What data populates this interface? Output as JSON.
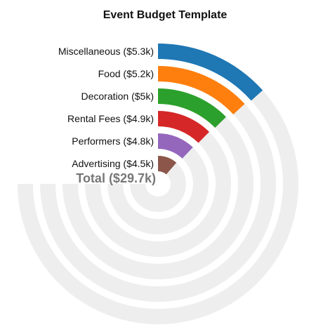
{
  "chart_data": {
    "type": "radial-bar",
    "title": "Event Budget Template",
    "categories": [
      "Miscellaneous",
      "Food",
      "Decoration",
      "Rental Fees",
      "Performers",
      "Advertising"
    ],
    "values": [
      5.3,
      5.2,
      5.0,
      4.9,
      4.8,
      4.5
    ],
    "labels": [
      "Miscellaneous ($5.3k)",
      "Food ($5.2k)",
      "Decoration ($5k)",
      "Rental Fees ($4.9k)",
      "Performers ($4.8k)",
      "Advertising ($4.5k)"
    ],
    "colors": [
      "#1f77b4",
      "#ff7f0e",
      "#2ca02c",
      "#d62728",
      "#9467bd",
      "#8c564b"
    ],
    "track_color": "#eeeeee",
    "max_value": 29.7,
    "total": 29.7,
    "total_label": "Total ($29.7k)",
    "legend": "none"
  }
}
